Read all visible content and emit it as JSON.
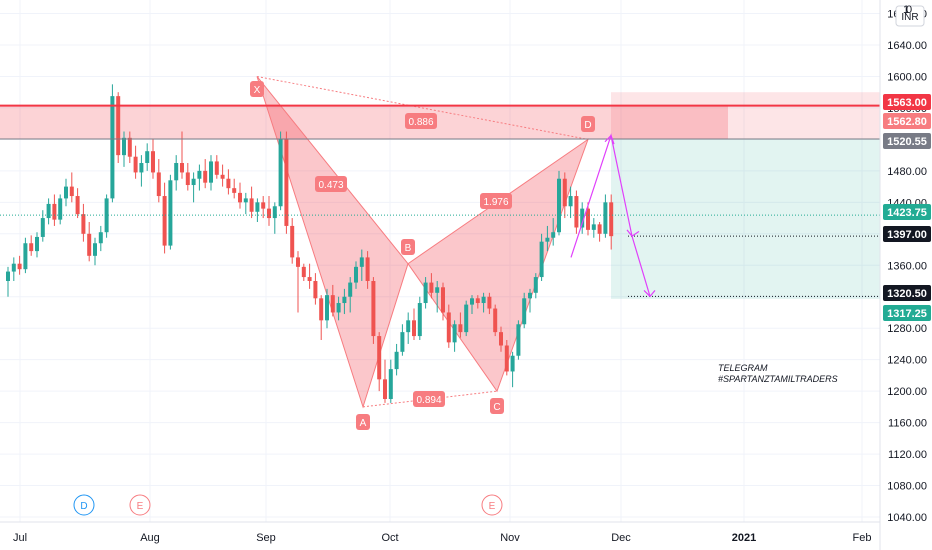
{
  "chart_data": {
    "type": "candlestick",
    "currency": "INR",
    "ylim": [
      1040,
      1720
    ],
    "y_ticks": [
      1040,
      1080,
      1120,
      1160,
      1200,
      1240,
      1280,
      1320,
      1360,
      1400,
      1440,
      1480,
      1520,
      1560,
      1600,
      1640,
      1680
    ],
    "y_tick_labels": [
      "1040.00",
      "1080.00",
      "1120.00",
      "1160.00",
      "1200.00",
      "1240.00",
      "1280.00",
      "1320.00",
      "1360.00",
      "1400.00",
      "1440.00",
      "1480.00",
      "1520.00",
      "1560.00",
      "1600.00",
      "1640.00",
      "1680.00"
    ],
    "x_labels": [
      "Jul",
      "Aug",
      "Sep",
      "Oct",
      "Nov",
      "Dec",
      "2021",
      "Feb"
    ],
    "price_tags": [
      {
        "value": 1563.0,
        "label": "1563.00",
        "color": "#f23645"
      },
      {
        "value": 1562.8,
        "label": "1562.80",
        "color": "#f77c80"
      },
      {
        "value": 1520.55,
        "label": "1520.55",
        "color": "#787b86"
      },
      {
        "value": 1423.75,
        "label": "1423.75",
        "color": "#22ab94"
      },
      {
        "value": 1397.0,
        "label": "1397.00",
        "color": "#131722"
      },
      {
        "value": 1320.5,
        "label": "1320.50",
        "color": "#131722"
      },
      {
        "value": 1317.25,
        "label": "1317.25",
        "color": "#22ab94"
      }
    ],
    "pattern": {
      "points": [
        {
          "label": "X",
          "value": 1600
        },
        {
          "label": "A",
          "value": 1180
        },
        {
          "label": "B",
          "value": 1362
        },
        {
          "label": "C",
          "value": 1200
        },
        {
          "label": "D",
          "value": 1520
        }
      ],
      "ratios": [
        "0.473",
        "0.886",
        "1.976",
        "0.894"
      ]
    },
    "events": [
      "D",
      "E",
      "E"
    ],
    "annotation": [
      "TELEGRAM",
      "#SPARTANZTAMILTRADERS"
    ],
    "candles": [
      [
        1340,
        1358,
        1320,
        1352
      ],
      [
        1352,
        1370,
        1340,
        1362
      ],
      [
        1362,
        1372,
        1348,
        1355
      ],
      [
        1355,
        1395,
        1350,
        1388
      ],
      [
        1388,
        1398,
        1372,
        1378
      ],
      [
        1378,
        1402,
        1370,
        1396
      ],
      [
        1396,
        1430,
        1390,
        1420
      ],
      [
        1420,
        1445,
        1412,
        1438
      ],
      [
        1438,
        1450,
        1410,
        1418
      ],
      [
        1418,
        1450,
        1412,
        1445
      ],
      [
        1445,
        1470,
        1435,
        1460
      ],
      [
        1460,
        1478,
        1440,
        1448
      ],
      [
        1448,
        1458,
        1420,
        1425
      ],
      [
        1425,
        1438,
        1390,
        1400
      ],
      [
        1400,
        1415,
        1365,
        1372
      ],
      [
        1372,
        1395,
        1360,
        1388
      ],
      [
        1388,
        1410,
        1378,
        1402
      ],
      [
        1402,
        1450,
        1395,
        1445
      ],
      [
        1445,
        1590,
        1440,
        1575
      ],
      [
        1575,
        1580,
        1490,
        1500
      ],
      [
        1500,
        1530,
        1485,
        1522
      ],
      [
        1522,
        1530,
        1490,
        1498
      ],
      [
        1498,
        1512,
        1470,
        1478
      ],
      [
        1478,
        1500,
        1460,
        1490
      ],
      [
        1490,
        1515,
        1480,
        1505
      ],
      [
        1505,
        1520,
        1470,
        1478
      ],
      [
        1478,
        1495,
        1440,
        1448
      ],
      [
        1448,
        1465,
        1375,
        1385
      ],
      [
        1385,
        1475,
        1380,
        1468
      ],
      [
        1468,
        1500,
        1455,
        1490
      ],
      [
        1490,
        1530,
        1470,
        1478
      ],
      [
        1478,
        1490,
        1455,
        1462
      ],
      [
        1462,
        1478,
        1440,
        1470
      ],
      [
        1470,
        1488,
        1455,
        1480
      ],
      [
        1480,
        1495,
        1458,
        1465
      ],
      [
        1465,
        1500,
        1455,
        1492
      ],
      [
        1492,
        1500,
        1470,
        1475
      ],
      [
        1475,
        1488,
        1460,
        1470
      ],
      [
        1470,
        1482,
        1450,
        1458
      ],
      [
        1458,
        1470,
        1445,
        1452
      ],
      [
        1452,
        1465,
        1432,
        1440
      ],
      [
        1440,
        1452,
        1425,
        1445
      ],
      [
        1445,
        1460,
        1420,
        1428
      ],
      [
        1428,
        1445,
        1415,
        1440
      ],
      [
        1440,
        1448,
        1420,
        1432
      ],
      [
        1432,
        1448,
        1410,
        1420
      ],
      [
        1420,
        1440,
        1400,
        1435
      ],
      [
        1435,
        1530,
        1430,
        1520
      ],
      [
        1520,
        1530,
        1400,
        1410
      ],
      [
        1410,
        1420,
        1362,
        1370
      ],
      [
        1370,
        1378,
        1300,
        1358
      ],
      [
        1358,
        1362,
        1340,
        1345
      ],
      [
        1345,
        1362,
        1330,
        1340
      ],
      [
        1340,
        1350,
        1310,
        1318
      ],
      [
        1318,
        1322,
        1265,
        1290
      ],
      [
        1290,
        1330,
        1280,
        1322
      ],
      [
        1322,
        1335,
        1295,
        1300
      ],
      [
        1300,
        1320,
        1290,
        1312
      ],
      [
        1312,
        1330,
        1298,
        1320
      ],
      [
        1320,
        1345,
        1300,
        1338
      ],
      [
        1338,
        1365,
        1330,
        1358
      ],
      [
        1358,
        1380,
        1340,
        1370
      ],
      [
        1370,
        1378,
        1330,
        1340
      ],
      [
        1340,
        1345,
        1260,
        1270
      ],
      [
        1270,
        1275,
        1200,
        1215
      ],
      [
        1215,
        1240,
        1185,
        1190
      ],
      [
        1190,
        1240,
        1185,
        1228
      ],
      [
        1228,
        1260,
        1220,
        1250
      ],
      [
        1250,
        1285,
        1245,
        1275
      ],
      [
        1275,
        1300,
        1260,
        1290
      ],
      [
        1290,
        1305,
        1265,
        1270
      ],
      [
        1270,
        1320,
        1265,
        1312
      ],
      [
        1312,
        1345,
        1305,
        1338
      ],
      [
        1338,
        1350,
        1318,
        1325
      ],
      [
        1325,
        1340,
        1300,
        1332
      ],
      [
        1332,
        1338,
        1290,
        1300
      ],
      [
        1300,
        1310,
        1255,
        1262
      ],
      [
        1262,
        1290,
        1250,
        1285
      ],
      [
        1285,
        1300,
        1268,
        1275
      ],
      [
        1275,
        1315,
        1270,
        1310
      ],
      [
        1310,
        1322,
        1298,
        1318
      ],
      [
        1318,
        1322,
        1305,
        1312
      ],
      [
        1312,
        1325,
        1300,
        1320
      ],
      [
        1320,
        1325,
        1298,
        1305
      ],
      [
        1305,
        1310,
        1270,
        1275
      ],
      [
        1275,
        1282,
        1250,
        1258
      ],
      [
        1258,
        1265,
        1220,
        1225
      ],
      [
        1225,
        1250,
        1205,
        1245
      ],
      [
        1245,
        1290,
        1240,
        1285
      ],
      [
        1285,
        1325,
        1280,
        1318
      ],
      [
        1318,
        1330,
        1300,
        1325
      ],
      [
        1325,
        1350,
        1318,
        1345
      ],
      [
        1345,
        1400,
        1340,
        1390
      ],
      [
        1390,
        1410,
        1378,
        1395
      ],
      [
        1395,
        1420,
        1385,
        1402
      ],
      [
        1402,
        1480,
        1398,
        1470
      ],
      [
        1470,
        1478,
        1420,
        1435
      ],
      [
        1435,
        1460,
        1420,
        1448
      ],
      [
        1448,
        1455,
        1400,
        1408
      ],
      [
        1408,
        1440,
        1400,
        1432
      ],
      [
        1432,
        1440,
        1398,
        1405
      ],
      [
        1405,
        1420,
        1395,
        1412
      ],
      [
        1412,
        1415,
        1390,
        1400
      ],
      [
        1400,
        1450,
        1395,
        1440
      ],
      [
        1440,
        1450,
        1380,
        1397
      ]
    ]
  },
  "labels": {
    "currency": "INR",
    "corner_top": "1",
    "corner_zero": "0",
    "note_line1": "TELEGRAM",
    "note_line2": "#SPARTANZTAMILTRADERS"
  }
}
